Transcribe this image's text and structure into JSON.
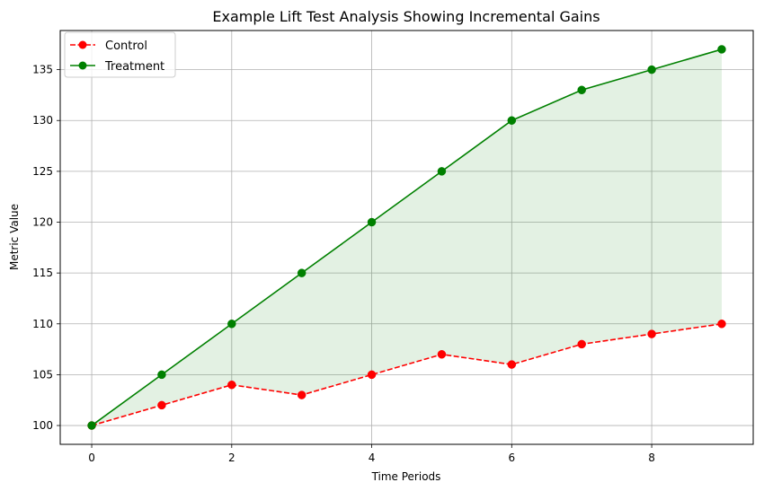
{
  "chart_data": {
    "type": "line",
    "title": "Example Lift Test Analysis Showing Incremental Gains",
    "xlabel": "Time Periods",
    "ylabel": "Metric Value",
    "x": [
      0,
      1,
      2,
      3,
      4,
      5,
      6,
      7,
      8,
      9
    ],
    "xlim": [
      -0.45,
      9.45
    ],
    "ylim": [
      98.15,
      138.85
    ],
    "x_ticks": [
      0,
      2,
      4,
      6,
      8
    ],
    "x_tick_labels": [
      "0",
      "2",
      "4",
      "6",
      "8"
    ],
    "y_ticks": [
      100,
      105,
      110,
      115,
      120,
      125,
      130,
      135
    ],
    "y_tick_labels": [
      "100",
      "105",
      "110",
      "115",
      "120",
      "125",
      "130",
      "135"
    ],
    "grid": true,
    "legend_position": "top-left",
    "fill_between": {
      "series": [
        "Control",
        "Treatment"
      ],
      "color": "#008000",
      "opacity": 0.11
    },
    "series": [
      {
        "name": "Control",
        "values": [
          100,
          102,
          104,
          103,
          105,
          107,
          106,
          108,
          109,
          110
        ],
        "color": "#ff0000",
        "linestyle": "dashed",
        "marker": "circle"
      },
      {
        "name": "Treatment",
        "values": [
          100,
          105,
          110,
          115,
          120,
          125,
          130,
          133,
          135,
          137
        ],
        "color": "#008000",
        "linestyle": "solid",
        "marker": "circle"
      }
    ]
  }
}
